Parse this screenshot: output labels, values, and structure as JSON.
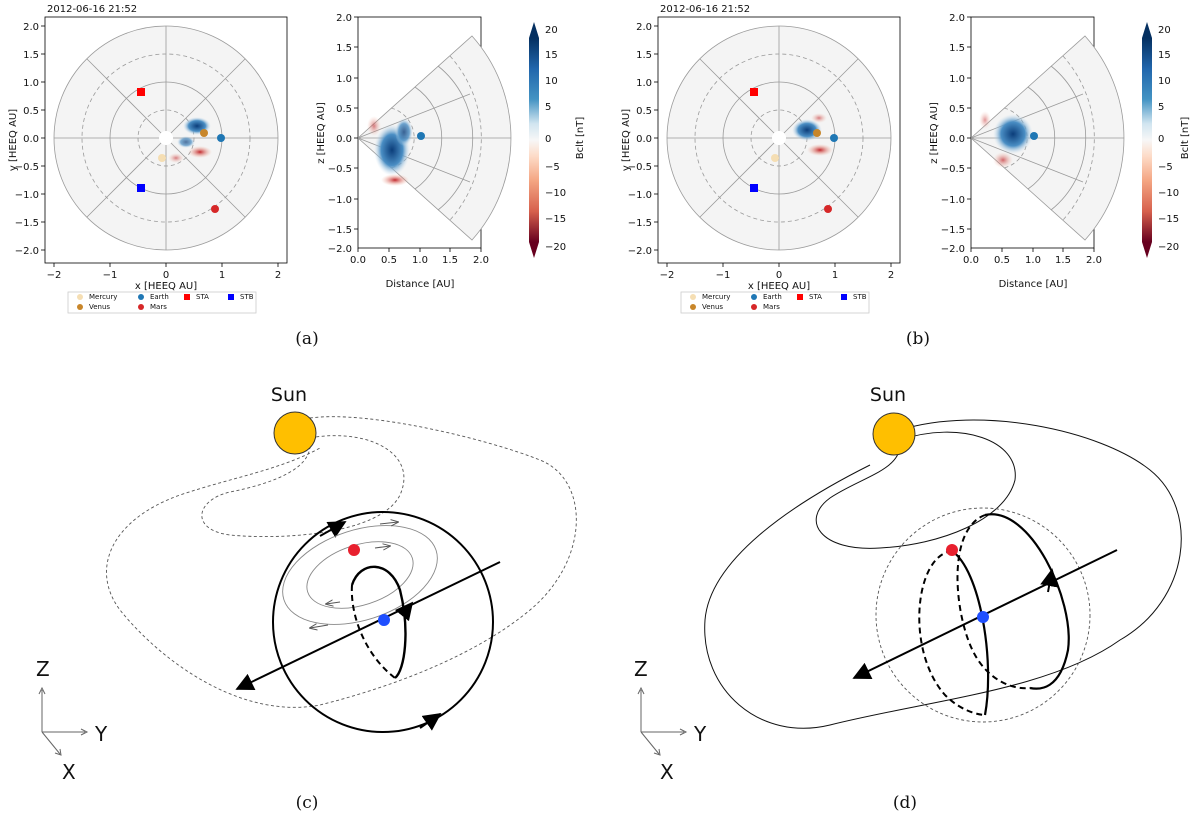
{
  "colors": {
    "mercury": "#f5deb3",
    "venus": "#c8862a",
    "earth": "#1f77b4",
    "mars": "#d62728",
    "sta": "#ff0000",
    "stb": "#0000ff",
    "sun": "#ffbf00",
    "red_dot": "#e8202e",
    "blue_dot": "#1f4fff",
    "bg_disk": "#f4f4f4"
  },
  "panels": {
    "a": {
      "timestamp": "2012-06-16 21:52",
      "caption": "(a)"
    },
    "b": {
      "timestamp": "2012-06-16 21:52",
      "caption": "(b)"
    },
    "c": {
      "caption": "(c)",
      "sun_label": "Sun",
      "z_label": "Z",
      "y_label": "Y",
      "x_label": "X"
    },
    "d": {
      "caption": "(d)",
      "sun_label": "Sun",
      "z_label": "Z",
      "y_label": "Y",
      "x_label": "X"
    }
  },
  "axes": {
    "xy": {
      "xlabel": "x [HEEQ AU]",
      "ylabel": "y [HEEQ AU]",
      "xticks": [
        "−2",
        "−1",
        "0",
        "1",
        "2"
      ],
      "yticks": [
        "2.0",
        "1.5",
        "1.0",
        "0.5",
        "0.0",
        "−0.5",
        "−1.0",
        "−1.5",
        "−2.0"
      ]
    },
    "xz": {
      "xlabel": "Distance [AU]",
      "ylabel": "z [HEEQ AU]",
      "xticks": [
        "0.0",
        "0.5",
        "1.0",
        "1.5",
        "2.0"
      ],
      "yticks": [
        "2.0",
        "1.5",
        "1.0",
        "0.5",
        "0.0",
        "−0.5",
        "−1.0",
        "−1.5",
        "−2.0"
      ]
    },
    "colorbar": {
      "label": "Bclt  [nT]",
      "ticks": [
        "20",
        "15",
        "10",
        "5",
        "0",
        "−5",
        "−10",
        "−15",
        "−20"
      ]
    }
  },
  "legend": {
    "mercury": "Mercury",
    "venus": "Venus",
    "earth": "Earth",
    "mars": "Mars",
    "sta": "STA",
    "stb": "STB"
  }
}
